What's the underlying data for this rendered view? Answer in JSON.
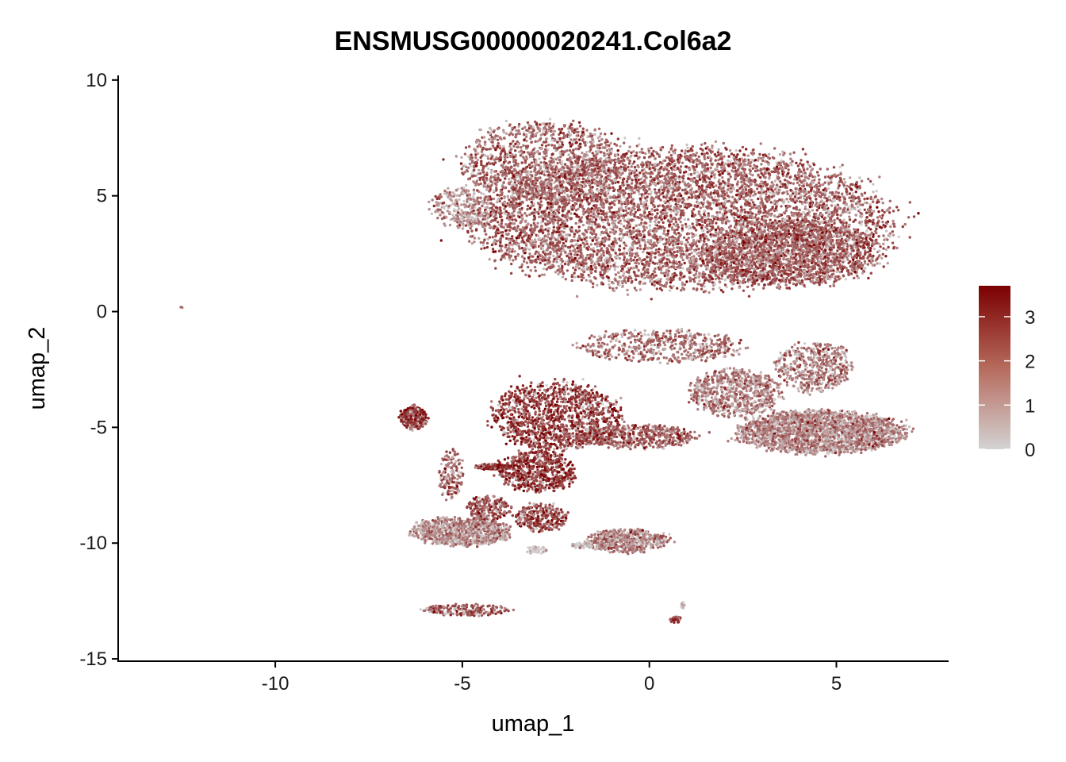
{
  "chart_data": {
    "type": "scatter",
    "title": "ENSMUSG00000020241.Col6a2",
    "xlabel": "umap_1",
    "ylabel": "umap_2",
    "xlim": [
      -14.2,
      8
    ],
    "ylim": [
      -15.1,
      10.2
    ],
    "x_ticks": [
      -10,
      -5,
      0,
      5
    ],
    "y_ticks": [
      10,
      5,
      0,
      -5,
      -10,
      -15
    ],
    "x_tick_labels": [
      "-10",
      "-5",
      "0",
      "5"
    ],
    "y_tick_labels": [
      "10",
      "5",
      "0",
      "-5",
      "-10",
      "-15"
    ],
    "grid": false,
    "color_scale": {
      "low": "#d3d3d3",
      "high": "#7a0000",
      "min": 0,
      "max": 3.7,
      "ticks": [
        0,
        1,
        2,
        3
      ],
      "tick_labels": [
        "0",
        "1",
        "2",
        "3"
      ],
      "legend_position": "right"
    },
    "clusters": [
      {
        "cx": 0.8,
        "cy": 4.0,
        "rx": 5.5,
        "ry": 3.0,
        "n": 6500,
        "expr": 2.0
      },
      {
        "cx": -2.8,
        "cy": 6.5,
        "rx": 2.2,
        "ry": 1.7,
        "n": 1200,
        "expr": 1.9
      },
      {
        "cx": 3.8,
        "cy": 2.5,
        "rx": 2.4,
        "ry": 1.4,
        "n": 1400,
        "expr": 2.1
      },
      {
        "cx": -5.0,
        "cy": 4.5,
        "rx": 0.8,
        "ry": 0.9,
        "n": 250,
        "expr": 1.2
      },
      {
        "cx": 0.3,
        "cy": -1.5,
        "rx": 2.2,
        "ry": 0.7,
        "n": 500,
        "expr": 1.7
      },
      {
        "cx": 4.4,
        "cy": -2.4,
        "rx": 1.0,
        "ry": 1.1,
        "n": 500,
        "expr": 1.6
      },
      {
        "cx": 4.6,
        "cy": -5.2,
        "rx": 2.2,
        "ry": 0.9,
        "n": 2200,
        "expr": 1.4
      },
      {
        "cx": 2.3,
        "cy": -3.5,
        "rx": 1.2,
        "ry": 1.0,
        "n": 700,
        "expr": 1.5
      },
      {
        "cx": -0.3,
        "cy": -5.4,
        "rx": 1.6,
        "ry": 0.5,
        "n": 500,
        "expr": 2.1
      },
      {
        "cx": -2.5,
        "cy": -4.5,
        "rx": 1.7,
        "ry": 1.5,
        "n": 1200,
        "expr": 2.6
      },
      {
        "cx": -3.0,
        "cy": -6.9,
        "rx": 1.0,
        "ry": 0.9,
        "n": 600,
        "expr": 2.7
      },
      {
        "cx": -4.2,
        "cy": -6.7,
        "rx": 0.45,
        "ry": 0.12,
        "n": 130,
        "expr": 2.7
      },
      {
        "cx": -2.9,
        "cy": -8.9,
        "rx": 0.7,
        "ry": 0.6,
        "n": 250,
        "expr": 2.4
      },
      {
        "cx": -6.3,
        "cy": -4.6,
        "rx": 0.35,
        "ry": 0.5,
        "n": 300,
        "expr": 2.8
      },
      {
        "cx": -5.3,
        "cy": -7.0,
        "rx": 0.3,
        "ry": 1.1,
        "n": 150,
        "expr": 1.9
      },
      {
        "cx": -5.0,
        "cy": -9.5,
        "rx": 1.3,
        "ry": 0.6,
        "n": 900,
        "expr": 1.3
      },
      {
        "cx": -4.3,
        "cy": -8.5,
        "rx": 0.6,
        "ry": 0.5,
        "n": 200,
        "expr": 2.3
      },
      {
        "cx": -0.6,
        "cy": -9.9,
        "rx": 1.1,
        "ry": 0.5,
        "n": 550,
        "expr": 1.4
      },
      {
        "cx": -3.0,
        "cy": -10.3,
        "rx": 0.3,
        "ry": 0.15,
        "n": 40,
        "expr": 0.3
      },
      {
        "cx": -1.8,
        "cy": -10.1,
        "rx": 0.3,
        "ry": 0.12,
        "n": 40,
        "expr": 0.2
      },
      {
        "cx": -4.9,
        "cy": -12.9,
        "rx": 1.2,
        "ry": 0.25,
        "n": 200,
        "expr": 2.2
      },
      {
        "cx": 0.7,
        "cy": -13.3,
        "rx": 0.15,
        "ry": 0.15,
        "n": 40,
        "expr": 2.5
      },
      {
        "cx": 0.9,
        "cy": -12.7,
        "rx": 0.05,
        "ry": 0.15,
        "n": 12,
        "expr": 0.3
      },
      {
        "cx": -12.5,
        "cy": 0.2,
        "rx": 0.03,
        "ry": 0.03,
        "n": 2,
        "expr": 1.5
      }
    ]
  }
}
